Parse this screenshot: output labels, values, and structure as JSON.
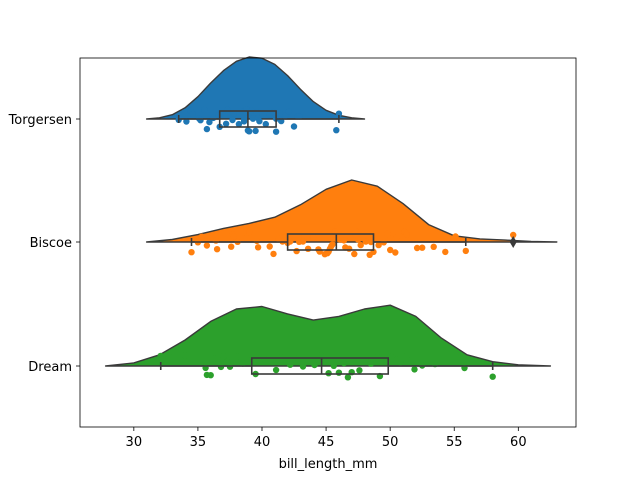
{
  "chart_data": {
    "type": "raincloud",
    "title": "",
    "xlabel": "bill_length_mm",
    "ylabel": "",
    "xlim": [
      25.8,
      64.5
    ],
    "xticks": [
      30,
      35,
      40,
      45,
      50,
      55,
      60
    ],
    "categories": [
      "Torgersen",
      "Biscoe",
      "Dream"
    ],
    "colors": {
      "Torgersen": "#1f77b4",
      "Biscoe": "#ff7f0e",
      "Dream": "#2ca02c"
    },
    "grid": false,
    "legend": "none",
    "series": [
      {
        "name": "Torgersen",
        "density": [
          [
            31,
            0.0
          ],
          [
            32,
            0.02
          ],
          [
            33,
            0.07
          ],
          [
            34,
            0.18
          ],
          [
            35,
            0.36
          ],
          [
            36,
            0.58
          ],
          [
            37,
            0.78
          ],
          [
            38,
            0.93
          ],
          [
            39,
            1.0
          ],
          [
            40,
            0.98
          ],
          [
            41,
            0.88
          ],
          [
            42,
            0.7
          ],
          [
            43,
            0.48
          ],
          [
            44,
            0.28
          ],
          [
            45,
            0.14
          ],
          [
            46,
            0.06
          ],
          [
            47,
            0.02
          ],
          [
            48,
            0.0
          ]
        ],
        "box": {
          "whisker_low": 33.5,
          "q1": 36.7,
          "median": 38.9,
          "q3": 41.1,
          "whisker_high": 46.0,
          "outliers": []
        },
        "points": [
          33.5,
          34.1,
          34.4,
          34.6,
          35.1,
          35.2,
          35.5,
          35.7,
          35.9,
          36.2,
          36.6,
          36.7,
          37.2,
          37.3,
          37.7,
          37.8,
          38.2,
          38.5,
          38.6,
          38.6,
          38.7,
          38.8,
          38.9,
          39.0,
          39.2,
          39.3,
          39.5,
          39.6,
          39.7,
          39.8,
          40.3,
          40.6,
          40.9,
          41.1,
          41.1,
          41.4,
          41.5,
          41.8,
          42.1,
          42.5,
          42.8,
          42.9,
          44.1,
          45.8,
          46.0
        ]
      },
      {
        "name": "Biscoe",
        "density": [
          [
            31,
            0.0
          ],
          [
            33,
            0.04
          ],
          [
            35,
            0.12
          ],
          [
            37,
            0.22
          ],
          [
            39,
            0.3
          ],
          [
            41,
            0.4
          ],
          [
            43,
            0.6
          ],
          [
            45,
            0.85
          ],
          [
            47,
            1.0
          ],
          [
            49,
            0.9
          ],
          [
            51,
            0.62
          ],
          [
            53,
            0.28
          ],
          [
            55,
            0.1
          ],
          [
            57,
            0.05
          ],
          [
            59,
            0.03
          ],
          [
            61,
            0.01
          ],
          [
            63,
            0.0
          ]
        ],
        "box": {
          "whisker_low": 34.5,
          "q1": 42.0,
          "median": 45.8,
          "q3": 48.7,
          "whisker_high": 55.9,
          "outliers": [
            59.6
          ]
        },
        "points": [
          34.5,
          35.0,
          35.3,
          35.7,
          36.4,
          36.5,
          37.6,
          37.7,
          37.8,
          38.1,
          38.8,
          39.0,
          39.6,
          39.7,
          40.6,
          40.9,
          41.3,
          41.6,
          42.0,
          42.2,
          42.7,
          42.9,
          43.2,
          43.3,
          43.5,
          43.6,
          43.8,
          44.0,
          44.4,
          44.5,
          44.9,
          45.1,
          45.2,
          45.3,
          45.4,
          45.5,
          45.7,
          45.8,
          46.1,
          46.2,
          46.4,
          46.5,
          46.8,
          46.9,
          47.2,
          47.3,
          47.5,
          47.7,
          48.1,
          48.2,
          48.4,
          48.5,
          48.7,
          49.1,
          49.5,
          49.8,
          50.0,
          50.4,
          50.5,
          51.1,
          51.3,
          52.1,
          52.5,
          53.4,
          54.3,
          55.1,
          55.9,
          59.6
        ]
      },
      {
        "name": "Dream",
        "density": [
          [
            27.8,
            0.0
          ],
          [
            30,
            0.05
          ],
          [
            32,
            0.18
          ],
          [
            34,
            0.42
          ],
          [
            36,
            0.72
          ],
          [
            38,
            0.92
          ],
          [
            40,
            0.96
          ],
          [
            42,
            0.84
          ],
          [
            44,
            0.74
          ],
          [
            46,
            0.8
          ],
          [
            48,
            0.92
          ],
          [
            50,
            0.98
          ],
          [
            52,
            0.8
          ],
          [
            54,
            0.45
          ],
          [
            56,
            0.18
          ],
          [
            58,
            0.07
          ],
          [
            60,
            0.02
          ],
          [
            62.5,
            0.0
          ]
        ],
        "box": {
          "whisker_low": 32.1,
          "q1": 39.2,
          "median": 44.65,
          "q3": 49.85,
          "whisker_high": 58.0,
          "outliers": []
        },
        "points": [
          32.1,
          33.1,
          34.0,
          35.6,
          35.7,
          36.0,
          36.3,
          36.8,
          37.0,
          37.3,
          37.5,
          38.1,
          38.5,
          38.9,
          39.2,
          39.5,
          39.6,
          40.2,
          40.8,
          41.1,
          41.5,
          42.2,
          42.5,
          43.2,
          44.1,
          44.6,
          45.2,
          45.6,
          46.0,
          46.4,
          46.7,
          47.0,
          47.6,
          48.1,
          48.5,
          49.0,
          49.2,
          49.7,
          50.1,
          50.5,
          50.8,
          51.3,
          51.9,
          52.5,
          53.5,
          55.8,
          58.0
        ]
      }
    ]
  }
}
